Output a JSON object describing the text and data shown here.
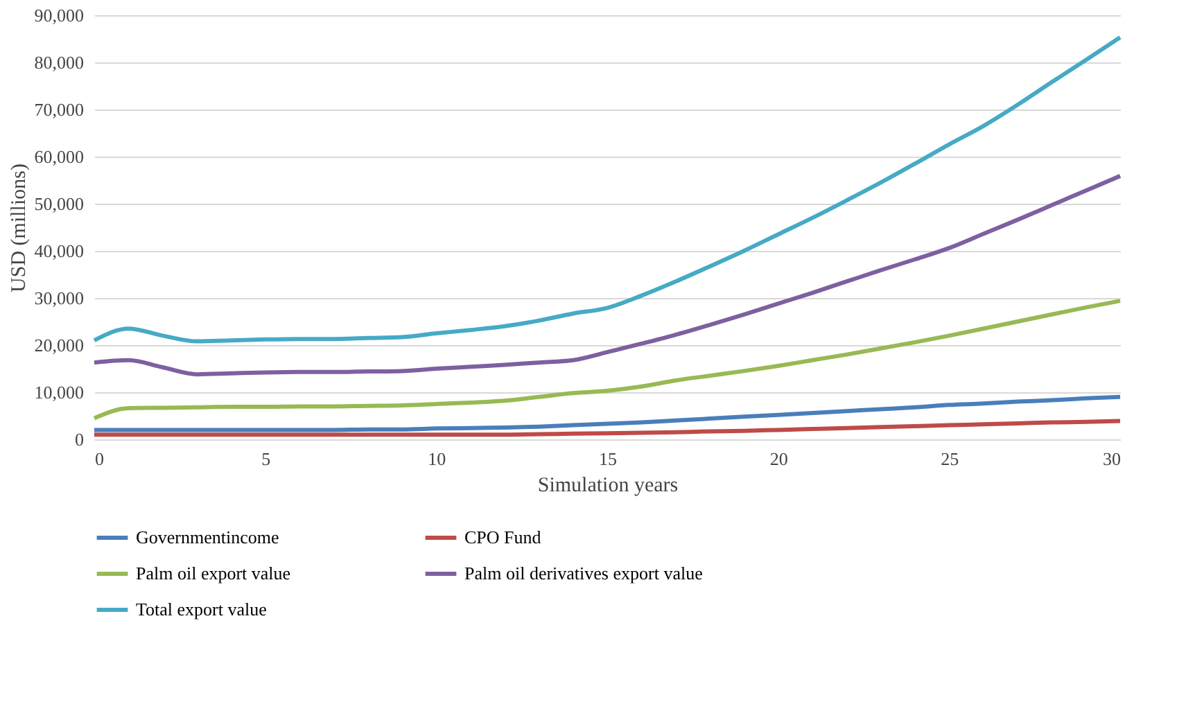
{
  "chart_data": {
    "type": "line",
    "xlabel": "Simulation years",
    "ylabel": "USD (millions)",
    "x": [
      0,
      1,
      2,
      3,
      4,
      5,
      6,
      7,
      8,
      9,
      10,
      11,
      12,
      13,
      14,
      15,
      16,
      17,
      18,
      19,
      20,
      21,
      22,
      23,
      24,
      25,
      26,
      27,
      28,
      29,
      30
    ],
    "xlim": [
      0,
      30
    ],
    "xticks": [
      0,
      5,
      10,
      15,
      20,
      25,
      30
    ],
    "ylim": [
      0,
      90000
    ],
    "yticks": [
      {
        "value": 0,
        "label": "0"
      },
      {
        "value": 10000,
        "label": "10,000"
      },
      {
        "value": 20000,
        "label": "20,000"
      },
      {
        "value": 30000,
        "label": "30,000"
      },
      {
        "value": 40000,
        "label": "40,000"
      },
      {
        "value": 50000,
        "label": "50,000"
      },
      {
        "value": 60000,
        "label": "60,000"
      },
      {
        "value": 70000,
        "label": "70,000"
      },
      {
        "value": 80000,
        "label": "80,000"
      },
      {
        "value": 90000,
        "label": "90,000"
      }
    ],
    "grid": "y",
    "legend": "bottom",
    "marker": "none",
    "line_style": "solid",
    "series": [
      {
        "name": "Governmentincome",
        "color": "#4a7ebb",
        "values": [
          2000,
          2000,
          2000,
          2000,
          2000,
          2000,
          2000,
          2000,
          2100,
          2100,
          2300,
          2400,
          2500,
          2700,
          3000,
          3300,
          3600,
          4000,
          4400,
          4800,
          5200,
          5600,
          6000,
          6400,
          6800,
          7300,
          7600,
          8000,
          8300,
          8700,
          9000
        ]
      },
      {
        "name": "CPO Fund",
        "color": "#be4b48",
        "values": [
          1000,
          1000,
          1000,
          1000,
          1000,
          1000,
          1000,
          1000,
          1000,
          1000,
          1000,
          1000,
          1000,
          1100,
          1200,
          1300,
          1400,
          1500,
          1700,
          1800,
          2000,
          2200,
          2400,
          2600,
          2800,
          3000,
          3200,
          3400,
          3600,
          3700,
          3900
        ]
      },
      {
        "name": "Palm oil export value",
        "color": "#98b954",
        "values": [
          4500,
          6600,
          6700,
          6800,
          6900,
          6900,
          7000,
          7000,
          7100,
          7200,
          7500,
          7800,
          8200,
          9000,
          9800,
          10300,
          11200,
          12500,
          13500,
          14500,
          15600,
          16800,
          18000,
          19300,
          20600,
          22000,
          23500,
          25000,
          26500,
          28000,
          29400
        ]
      },
      {
        "name": "Palm oil derivatives export value",
        "color": "#7d60a0",
        "values": [
          16300,
          16800,
          15300,
          13800,
          14000,
          14200,
          14300,
          14300,
          14400,
          14500,
          15000,
          15400,
          15800,
          16300,
          16800,
          18500,
          20300,
          22200,
          24300,
          26500,
          28800,
          31100,
          33500,
          35900,
          38200,
          40600,
          43600,
          46600,
          49700,
          52800,
          55900
        ]
      },
      {
        "name": "Total export value",
        "color": "#46aac5",
        "values": [
          21000,
          23500,
          22000,
          20800,
          21000,
          21200,
          21300,
          21300,
          21500,
          21700,
          22500,
          23200,
          24000,
          25200,
          26700,
          27900,
          30500,
          33500,
          36700,
          40000,
          43500,
          47000,
          50700,
          54500,
          58500,
          62600,
          66500,
          71000,
          75800,
          80500,
          85300
        ]
      }
    ]
  }
}
